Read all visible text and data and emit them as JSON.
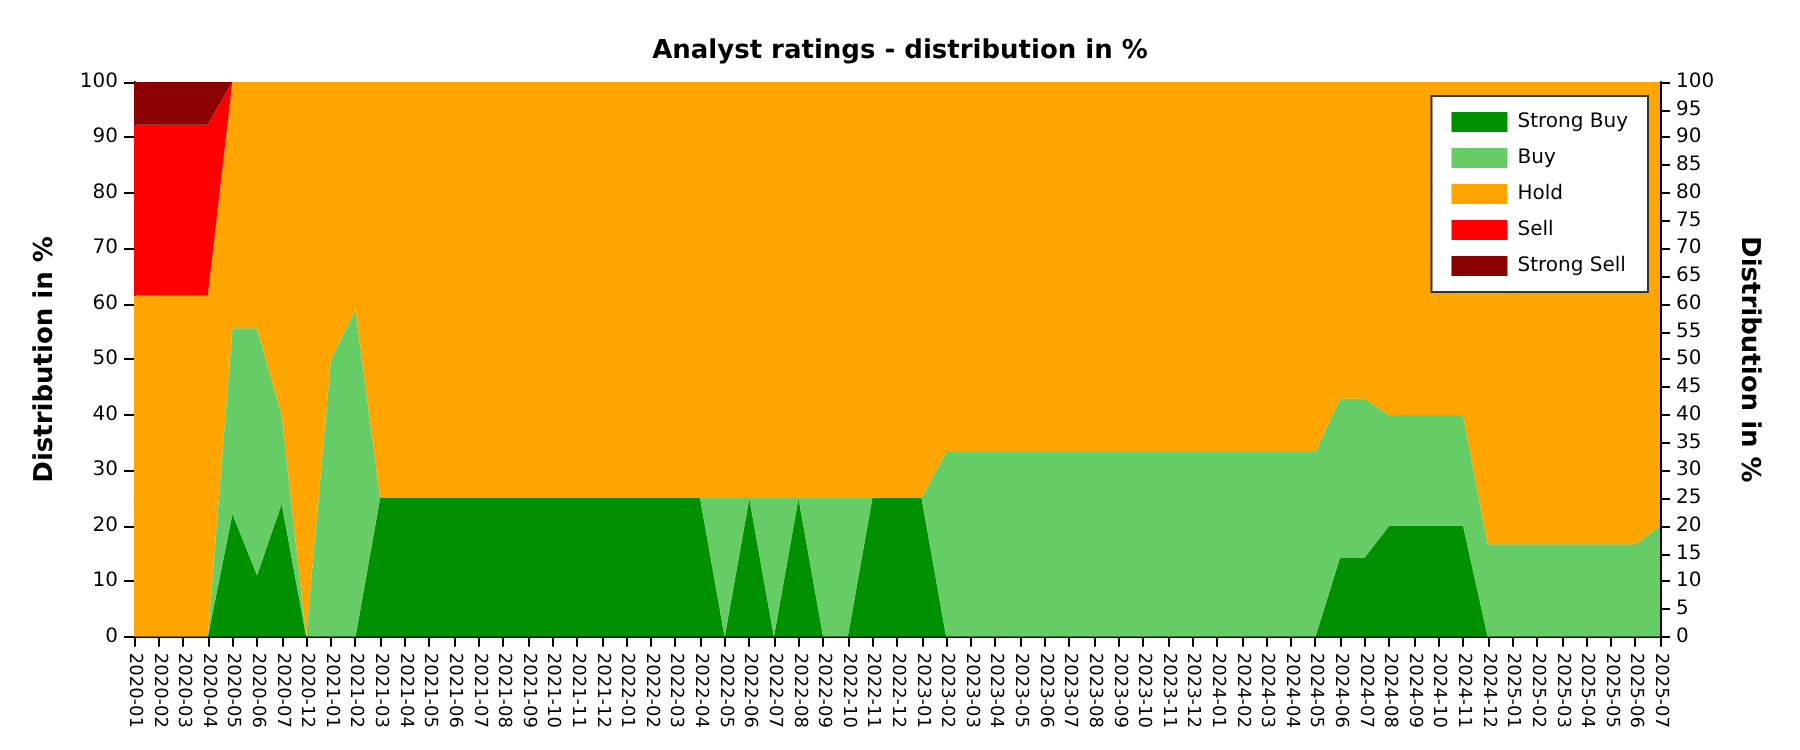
{
  "chart_data": {
    "type": "area",
    "title": "Analyst ratings - distribution in %",
    "ylabel": "Distribution in %",
    "y2label": "Distribution in %",
    "categories": [
      "2020-01",
      "2020-02",
      "2020-03",
      "2020-04",
      "2020-05",
      "2020-06",
      "2020-07",
      "2020-12",
      "2021-01",
      "2021-02",
      "2021-03",
      "2021-04",
      "2021-05",
      "2021-06",
      "2021-07",
      "2021-08",
      "2021-09",
      "2021-10",
      "2021-11",
      "2021-12",
      "2022-01",
      "2022-02",
      "2022-03",
      "2022-04",
      "2022-05",
      "2022-06",
      "2022-07",
      "2022-08",
      "2022-09",
      "2022-10",
      "2022-11",
      "2022-12",
      "2023-01",
      "2023-02",
      "2023-03",
      "2023-04",
      "2023-05",
      "2023-06",
      "2023-07",
      "2023-08",
      "2023-09",
      "2023-10",
      "2023-11",
      "2023-12",
      "2024-01",
      "2024-02",
      "2024-03",
      "2024-04",
      "2024-05",
      "2024-06",
      "2024-07",
      "2024-08",
      "2024-09",
      "2024-10",
      "2024-11",
      "2024-12",
      "2025-01",
      "2025-02",
      "2025-03",
      "2025-04",
      "2025-05",
      "2025-06",
      "2025-07"
    ],
    "stacked": true,
    "marker": "none",
    "grid": "y",
    "legend": "top right",
    "ylim": [
      0,
      100
    ],
    "yticks": [
      0,
      10,
      20,
      30,
      40,
      50,
      60,
      70,
      80,
      90,
      100
    ],
    "y2lim": [
      0,
      100
    ],
    "y2ticks": [
      0,
      5,
      10,
      15,
      20,
      25,
      30,
      35,
      40,
      45,
      50,
      55,
      60,
      65,
      70,
      75,
      80,
      85,
      90,
      95,
      100
    ],
    "series": [
      {
        "name": "Strong Buy",
        "color": "#009000",
        "values": [
          0,
          0,
          0,
          0,
          22.2,
          11.1,
          24,
          0,
          0,
          0,
          25,
          25,
          25,
          25,
          25,
          25,
          25,
          25,
          25,
          25,
          25,
          25,
          25,
          25,
          0,
          25,
          0,
          25,
          0,
          0,
          25,
          25,
          25,
          0,
          0,
          0,
          0,
          0,
          0,
          0,
          0,
          0,
          0,
          0,
          0,
          0,
          0,
          0,
          0,
          14.3,
          14.3,
          20,
          20,
          20,
          20,
          0,
          0,
          0,
          0,
          0,
          0,
          0,
          0
        ]
      },
      {
        "name": "Buy",
        "color": "#66cc66",
        "values": [
          0,
          0,
          0,
          0,
          33.4,
          44.5,
          16,
          0,
          50,
          59,
          0,
          0,
          0,
          0,
          0,
          0,
          0,
          0,
          0,
          0,
          0,
          0,
          0,
          0,
          25,
          0,
          25,
          0,
          25,
          25,
          0,
          0,
          0,
          33.3,
          33.3,
          33.3,
          33.3,
          33.3,
          33.3,
          33.3,
          33.3,
          33.3,
          33.3,
          33.3,
          33.3,
          33.3,
          33.3,
          33.3,
          33.3,
          28.6,
          28.6,
          20,
          20,
          20,
          20,
          16.7,
          16.7,
          16.7,
          16.7,
          16.7,
          16.7,
          16.7,
          20
        ]
      },
      {
        "name": "Hold",
        "color": "#ffa500",
        "values": [
          61.5,
          61.5,
          61.5,
          61.5,
          44.4,
          44.4,
          60,
          100,
          50,
          41,
          75,
          75,
          75,
          75,
          75,
          75,
          75,
          75,
          75,
          75,
          75,
          75,
          75,
          75,
          75,
          75,
          75,
          75,
          75,
          75,
          75,
          75,
          75,
          66.7,
          66.7,
          66.7,
          66.7,
          66.7,
          66.7,
          66.7,
          66.7,
          66.7,
          66.7,
          66.7,
          66.7,
          66.7,
          66.7,
          66.7,
          66.7,
          57.1,
          57.1,
          60,
          60,
          60,
          60,
          83.3,
          83.3,
          83.3,
          83.3,
          83.3,
          83.3,
          83.3,
          80
        ]
      },
      {
        "name": "Sell",
        "color": "#ff0000",
        "values": [
          30.8,
          30.8,
          30.8,
          30.8,
          0,
          0,
          0,
          0,
          0,
          0,
          0,
          0,
          0,
          0,
          0,
          0,
          0,
          0,
          0,
          0,
          0,
          0,
          0,
          0,
          0,
          0,
          0,
          0,
          0,
          0,
          0,
          0,
          0,
          0,
          0,
          0,
          0,
          0,
          0,
          0,
          0,
          0,
          0,
          0,
          0,
          0,
          0,
          0,
          0,
          0,
          0,
          0,
          0,
          0,
          0,
          0,
          0,
          0,
          0,
          0,
          0,
          0,
          0
        ]
      },
      {
        "name": "Strong Sell",
        "color": "#8b0000",
        "values": [
          7.7,
          7.7,
          7.7,
          7.7,
          0,
          0,
          0,
          0,
          0,
          0,
          0,
          0,
          0,
          0,
          0,
          0,
          0,
          0,
          0,
          0,
          0,
          0,
          0,
          0,
          0,
          0,
          0,
          0,
          0,
          0,
          0,
          0,
          0,
          0,
          0,
          0,
          0,
          0,
          0,
          0,
          0,
          0,
          0,
          0,
          0,
          0,
          0,
          0,
          0,
          0,
          0,
          0,
          0,
          0,
          0,
          0,
          0,
          0,
          0,
          0,
          0,
          0,
          0
        ]
      }
    ]
  }
}
